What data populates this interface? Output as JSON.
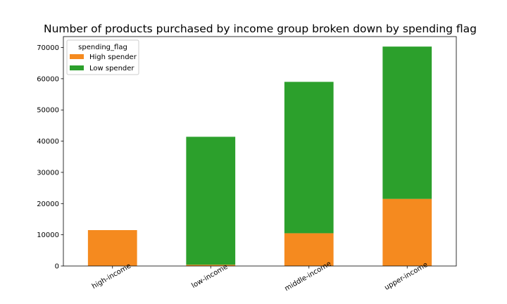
{
  "chart_data": {
    "type": "bar",
    "stacked": true,
    "title": "Number of products purchased by income group broken down by spending flag",
    "xlabel": "",
    "ylabel": "",
    "categories": [
      "high-income",
      "low-income",
      "middle-income",
      "upper-income"
    ],
    "series": [
      {
        "name": "High spender",
        "color": "#f58a1f",
        "values": [
          11500,
          400,
          10500,
          21500
        ]
      },
      {
        "name": "Low spender",
        "color": "#2ca02c",
        "values": [
          0,
          41000,
          48500,
          48800
        ]
      }
    ],
    "yticks": [
      0,
      10000,
      20000,
      30000,
      40000,
      50000,
      60000,
      70000
    ],
    "ylim": [
      0,
      73500
    ],
    "grid": false,
    "legend": {
      "title": "spending_flag",
      "placement": "upper-left"
    }
  }
}
